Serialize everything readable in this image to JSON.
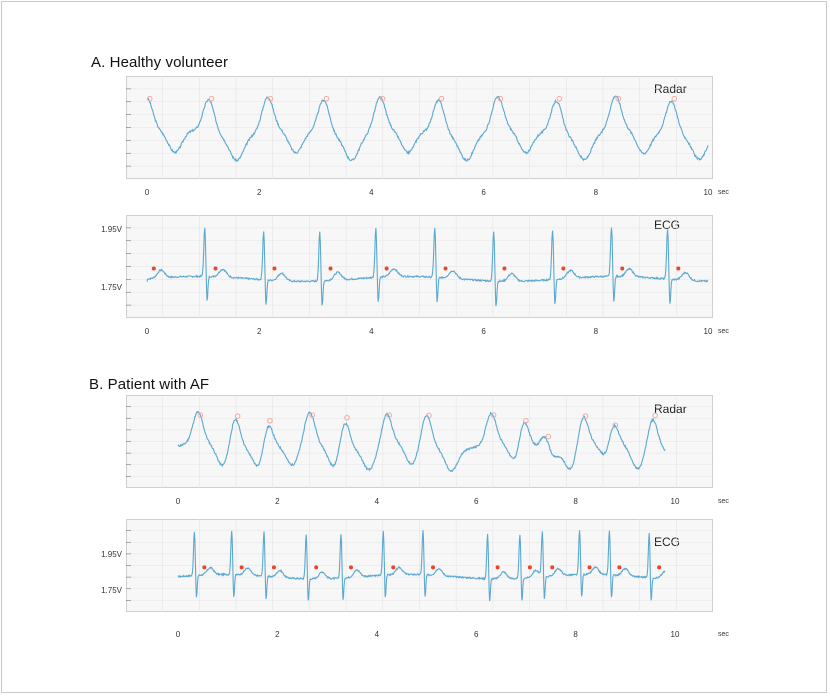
{
  "colors": {
    "trace": "#5ba8d0",
    "radar_marker": "#f4a9a0",
    "ecg_marker": "#e8452b",
    "grid": "#e4e4e4"
  },
  "sections": [
    {
      "title": "A. Healthy volunteer"
    },
    {
      "title": "B. Patient with AF"
    }
  ],
  "panel_labels": {
    "radar": "Radar",
    "ecg": "ECG"
  },
  "ecg_yticks": [
    "1.95V",
    "1.75V"
  ],
  "x_unit": "sec",
  "x_ticks": [
    "0",
    "2",
    "4",
    "6",
    "8",
    "10"
  ],
  "chart_data": [
    {
      "type": "line",
      "title": "A. Healthy volunteer — Radar",
      "xlabel": "sec",
      "xlim": [
        -0.3,
        10
      ],
      "beats": [
        0.05,
        1.15,
        2.2,
        3.2,
        4.2,
        5.25,
        6.3,
        7.35,
        8.4,
        9.4
      ],
      "marker": "peak"
    },
    {
      "type": "line",
      "title": "A. Healthy volunteer — ECG",
      "xlabel": "sec",
      "ylabel": "V",
      "xlim": [
        -0.3,
        10
      ],
      "yticks": [
        1.75,
        1.95
      ],
      "beats": [
        0.05,
        1.15,
        2.2,
        3.2,
        4.2,
        5.25,
        6.3,
        7.35,
        8.4,
        9.4
      ],
      "marker": "R-peak"
    },
    {
      "type": "line",
      "title": "B. Patient with AF — Radar",
      "xlabel": "sec",
      "xlim": [
        -1,
        11
      ],
      "beats": [
        0.45,
        1.2,
        1.85,
        2.7,
        3.4,
        4.25,
        5.05,
        6.35,
        7.0,
        7.45,
        8.2,
        8.8,
        9.6
      ],
      "marker": "peak"
    },
    {
      "type": "line",
      "title": "B. Patient with AF — ECG",
      "xlabel": "sec",
      "ylabel": "V",
      "xlim": [
        -1,
        11
      ],
      "yticks": [
        1.75,
        1.95
      ],
      "beats": [
        0.45,
        1.2,
        1.85,
        2.7,
        3.4,
        4.25,
        5.05,
        6.35,
        7.0,
        7.45,
        8.2,
        8.8,
        9.6
      ],
      "marker": "R-peak"
    }
  ]
}
